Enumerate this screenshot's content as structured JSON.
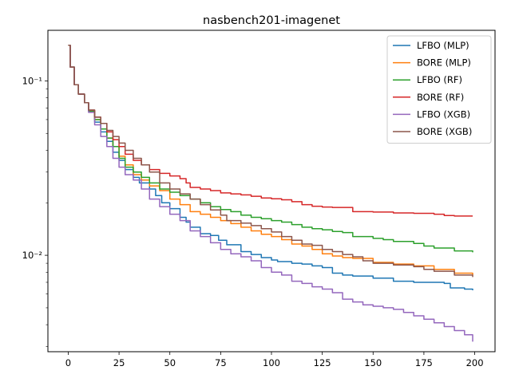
{
  "chart_data": {
    "type": "line",
    "title": "nasbench201-imagenet",
    "xlabel": "",
    "ylabel": "",
    "xlim": [
      -10,
      210
    ],
    "ylim": [
      0.0028,
      0.195
    ],
    "yscale": "log",
    "grid": false,
    "legend_position": "top-right",
    "x_ticks": [
      0,
      25,
      50,
      75,
      100,
      125,
      150,
      175,
      200
    ],
    "x_tick_labels": [
      "0",
      "25",
      "50",
      "75",
      "100",
      "125",
      "150",
      "175",
      "200"
    ],
    "y_ticks": [
      0.01,
      0.1
    ],
    "y_tick_labels": [
      "10⁻²",
      "10⁻¹"
    ],
    "series": [
      {
        "name": "LFBO (MLP)",
        "color": "#1f77b4",
        "points": [
          [
            0,
            0.16
          ],
          [
            1,
            0.12
          ],
          [
            3,
            0.095
          ],
          [
            5,
            0.084
          ],
          [
            8,
            0.075
          ],
          [
            10,
            0.067
          ],
          [
            13,
            0.058
          ],
          [
            16,
            0.051
          ],
          [
            19,
            0.045
          ],
          [
            22,
            0.039
          ],
          [
            25,
            0.035
          ],
          [
            28,
            0.031
          ],
          [
            32,
            0.028
          ],
          [
            35,
            0.026
          ],
          [
            40,
            0.024
          ],
          [
            43,
            0.022
          ],
          [
            46,
            0.02
          ],
          [
            50,
            0.0185
          ],
          [
            55,
            0.0165
          ],
          [
            58,
            0.0155
          ],
          [
            60,
            0.0145
          ],
          [
            65,
            0.0133
          ],
          [
            70,
            0.013
          ],
          [
            74,
            0.0122
          ],
          [
            78,
            0.0115
          ],
          [
            85,
            0.0105
          ],
          [
            90,
            0.0101
          ],
          [
            95,
            0.0097
          ],
          [
            100,
            0.0094
          ],
          [
            103,
            0.0092
          ],
          [
            110,
            0.009
          ],
          [
            115,
            0.0089
          ],
          [
            120,
            0.0087
          ],
          [
            125,
            0.0085
          ],
          [
            130,
            0.0079
          ],
          [
            135,
            0.0077
          ],
          [
            140,
            0.0076
          ],
          [
            150,
            0.0074
          ],
          [
            160,
            0.0071
          ],
          [
            170,
            0.007
          ],
          [
            180,
            0.007
          ],
          [
            185,
            0.0069
          ],
          [
            188,
            0.0065
          ],
          [
            195,
            0.0064
          ],
          [
            199,
            0.0063
          ]
        ]
      },
      {
        "name": "BORE (MLP)",
        "color": "#ff7f0e",
        "points": [
          [
            0,
            0.16
          ],
          [
            1,
            0.12
          ],
          [
            3,
            0.095
          ],
          [
            5,
            0.084
          ],
          [
            8,
            0.075
          ],
          [
            10,
            0.067
          ],
          [
            13,
            0.06
          ],
          [
            16,
            0.053
          ],
          [
            19,
            0.047
          ],
          [
            22,
            0.042
          ],
          [
            25,
            0.037
          ],
          [
            28,
            0.033
          ],
          [
            32,
            0.029
          ],
          [
            36,
            0.027
          ],
          [
            40,
            0.025
          ],
          [
            45,
            0.0235
          ],
          [
            50,
            0.021
          ],
          [
            55,
            0.0195
          ],
          [
            60,
            0.0178
          ],
          [
            65,
            0.0172
          ],
          [
            70,
            0.0165
          ],
          [
            75,
            0.0158
          ],
          [
            80,
            0.0152
          ],
          [
            85,
            0.0145
          ],
          [
            90,
            0.0138
          ],
          [
            95,
            0.0132
          ],
          [
            100,
            0.0128
          ],
          [
            105,
            0.0123
          ],
          [
            110,
            0.0116
          ],
          [
            115,
            0.0113
          ],
          [
            120,
            0.0108
          ],
          [
            125,
            0.0102
          ],
          [
            130,
            0.0099
          ],
          [
            135,
            0.0097
          ],
          [
            140,
            0.0096
          ],
          [
            150,
            0.0091
          ],
          [
            160,
            0.0089
          ],
          [
            170,
            0.0087
          ],
          [
            180,
            0.0083
          ],
          [
            190,
            0.0079
          ],
          [
            199,
            0.0077
          ]
        ]
      },
      {
        "name": "LFBO (RF)",
        "color": "#2ca02c",
        "points": [
          [
            0,
            0.16
          ],
          [
            1,
            0.12
          ],
          [
            3,
            0.095
          ],
          [
            5,
            0.084
          ],
          [
            8,
            0.075
          ],
          [
            10,
            0.067
          ],
          [
            13,
            0.06
          ],
          [
            16,
            0.053
          ],
          [
            19,
            0.047
          ],
          [
            22,
            0.042
          ],
          [
            25,
            0.036
          ],
          [
            28,
            0.032
          ],
          [
            32,
            0.03
          ],
          [
            36,
            0.028
          ],
          [
            40,
            0.026
          ],
          [
            45,
            0.024
          ],
          [
            50,
            0.023
          ],
          [
            55,
            0.022
          ],
          [
            60,
            0.021
          ],
          [
            65,
            0.02
          ],
          [
            70,
            0.019
          ],
          [
            75,
            0.0183
          ],
          [
            80,
            0.0178
          ],
          [
            85,
            0.017
          ],
          [
            90,
            0.0165
          ],
          [
            95,
            0.0162
          ],
          [
            100,
            0.0158
          ],
          [
            105,
            0.0155
          ],
          [
            110,
            0.015
          ],
          [
            115,
            0.0145
          ],
          [
            120,
            0.0142
          ],
          [
            125,
            0.014
          ],
          [
            130,
            0.0137
          ],
          [
            135,
            0.0135
          ],
          [
            140,
            0.0128
          ],
          [
            150,
            0.0125
          ],
          [
            155,
            0.0123
          ],
          [
            160,
            0.012
          ],
          [
            170,
            0.0117
          ],
          [
            175,
            0.0113
          ],
          [
            180,
            0.011
          ],
          [
            190,
            0.0106
          ],
          [
            199,
            0.0104
          ]
        ]
      },
      {
        "name": "BORE (RF)",
        "color": "#d62728",
        "points": [
          [
            0,
            0.16
          ],
          [
            1,
            0.12
          ],
          [
            3,
            0.095
          ],
          [
            5,
            0.084
          ],
          [
            8,
            0.075
          ],
          [
            10,
            0.068
          ],
          [
            13,
            0.062
          ],
          [
            16,
            0.057
          ],
          [
            19,
            0.051
          ],
          [
            22,
            0.046
          ],
          [
            25,
            0.042
          ],
          [
            28,
            0.038
          ],
          [
            32,
            0.035
          ],
          [
            36,
            0.033
          ],
          [
            40,
            0.031
          ],
          [
            45,
            0.0295
          ],
          [
            50,
            0.0285
          ],
          [
            55,
            0.0275
          ],
          [
            58,
            0.026
          ],
          [
            60,
            0.0245
          ],
          [
            65,
            0.024
          ],
          [
            70,
            0.0235
          ],
          [
            75,
            0.0228
          ],
          [
            80,
            0.0225
          ],
          [
            85,
            0.0222
          ],
          [
            90,
            0.0218
          ],
          [
            95,
            0.0213
          ],
          [
            100,
            0.0211
          ],
          [
            105,
            0.0208
          ],
          [
            110,
            0.0203
          ],
          [
            115,
            0.0195
          ],
          [
            120,
            0.0191
          ],
          [
            125,
            0.0189
          ],
          [
            130,
            0.0188
          ],
          [
            140,
            0.0178
          ],
          [
            150,
            0.0177
          ],
          [
            160,
            0.0175
          ],
          [
            170,
            0.0174
          ],
          [
            180,
            0.0172
          ],
          [
            185,
            0.0169
          ],
          [
            190,
            0.0168
          ],
          [
            199,
            0.0168
          ]
        ]
      },
      {
        "name": "LFBO (XGB)",
        "color": "#9467bd",
        "points": [
          [
            0,
            0.16
          ],
          [
            1,
            0.12
          ],
          [
            3,
            0.095
          ],
          [
            5,
            0.084
          ],
          [
            8,
            0.075
          ],
          [
            10,
            0.066
          ],
          [
            13,
            0.056
          ],
          [
            16,
            0.048
          ],
          [
            19,
            0.042
          ],
          [
            22,
            0.036
          ],
          [
            25,
            0.032
          ],
          [
            28,
            0.029
          ],
          [
            32,
            0.027
          ],
          [
            36,
            0.024
          ],
          [
            40,
            0.021
          ],
          [
            45,
            0.019
          ],
          [
            50,
            0.0172
          ],
          [
            55,
            0.0158
          ],
          [
            60,
            0.0138
          ],
          [
            65,
            0.0128
          ],
          [
            70,
            0.0118
          ],
          [
            75,
            0.0108
          ],
          [
            80,
            0.0102
          ],
          [
            85,
            0.0098
          ],
          [
            90,
            0.0093
          ],
          [
            95,
            0.0085
          ],
          [
            100,
            0.008
          ],
          [
            105,
            0.0077
          ],
          [
            110,
            0.0071
          ],
          [
            115,
            0.0069
          ],
          [
            120,
            0.0066
          ],
          [
            125,
            0.0064
          ],
          [
            130,
            0.0061
          ],
          [
            135,
            0.0056
          ],
          [
            140,
            0.0054
          ],
          [
            145,
            0.0052
          ],
          [
            150,
            0.0051
          ],
          [
            155,
            0.005
          ],
          [
            160,
            0.0049
          ],
          [
            165,
            0.0047
          ],
          [
            170,
            0.0045
          ],
          [
            175,
            0.0043
          ],
          [
            180,
            0.0041
          ],
          [
            185,
            0.0039
          ],
          [
            190,
            0.0037
          ],
          [
            195,
            0.0035
          ],
          [
            199,
            0.0032
          ]
        ]
      },
      {
        "name": "BORE (XGB)",
        "color": "#8c564b",
        "points": [
          [
            0,
            0.16
          ],
          [
            1,
            0.12
          ],
          [
            3,
            0.095
          ],
          [
            5,
            0.084
          ],
          [
            8,
            0.075
          ],
          [
            10,
            0.068
          ],
          [
            13,
            0.062
          ],
          [
            16,
            0.057
          ],
          [
            19,
            0.052
          ],
          [
            22,
            0.048
          ],
          [
            25,
            0.044
          ],
          [
            28,
            0.04
          ],
          [
            32,
            0.036
          ],
          [
            36,
            0.033
          ],
          [
            40,
            0.03
          ],
          [
            45,
            0.026
          ],
          [
            50,
            0.024
          ],
          [
            55,
            0.0225
          ],
          [
            60,
            0.021
          ],
          [
            65,
            0.0195
          ],
          [
            70,
            0.0182
          ],
          [
            75,
            0.017
          ],
          [
            78,
            0.0158
          ],
          [
            85,
            0.0153
          ],
          [
            90,
            0.0148
          ],
          [
            95,
            0.0142
          ],
          [
            100,
            0.0136
          ],
          [
            105,
            0.0128
          ],
          [
            110,
            0.0122
          ],
          [
            115,
            0.0116
          ],
          [
            120,
            0.0114
          ],
          [
            125,
            0.0108
          ],
          [
            130,
            0.0105
          ],
          [
            135,
            0.0101
          ],
          [
            140,
            0.0098
          ],
          [
            145,
            0.0093
          ],
          [
            150,
            0.009
          ],
          [
            160,
            0.0088
          ],
          [
            170,
            0.0086
          ],
          [
            175,
            0.0083
          ],
          [
            180,
            0.0081
          ],
          [
            190,
            0.0077
          ],
          [
            199,
            0.0075
          ]
        ]
      }
    ]
  }
}
